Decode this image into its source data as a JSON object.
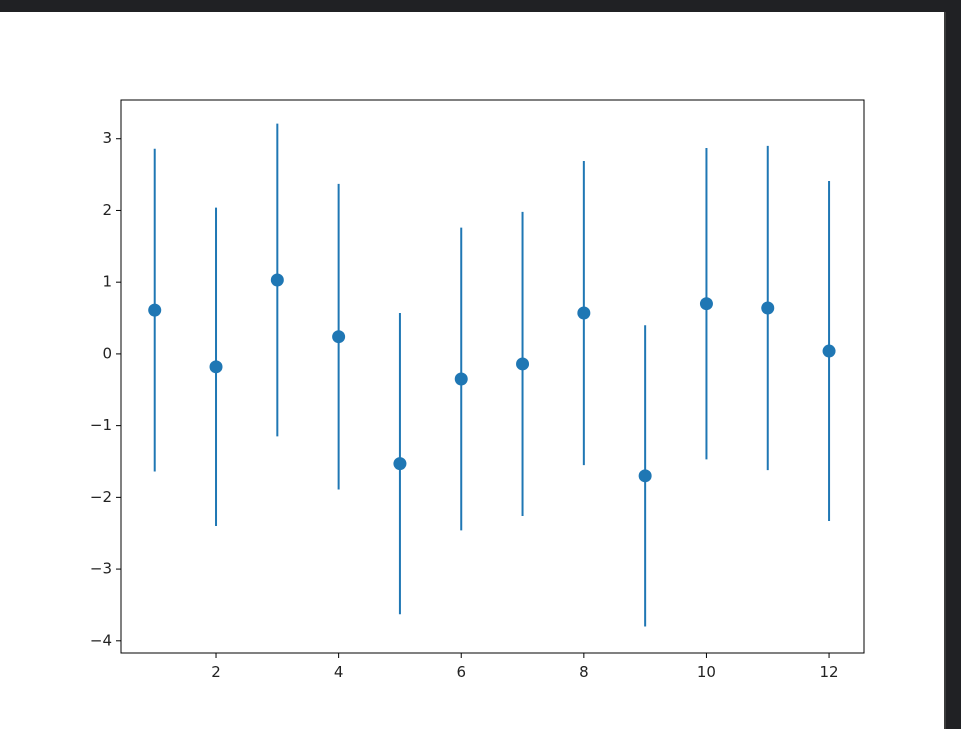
{
  "chart_data": {
    "type": "errorbar",
    "x": [
      1,
      2,
      3,
      4,
      5,
      6,
      7,
      8,
      9,
      10,
      11,
      12
    ],
    "series": [
      {
        "color": "#1f77b4",
        "values": [
          0.61,
          -0.18,
          1.03,
          0.24,
          -1.53,
          -0.35,
          -0.14,
          0.57,
          -1.7,
          0.7,
          0.64,
          0.04
        ],
        "errors": [
          2.25,
          2.22,
          2.18,
          2.13,
          2.1,
          2.11,
          2.12,
          2.12,
          2.1,
          2.17,
          2.26,
          2.37
        ]
      }
    ],
    "xlim": [
      0.45,
      12.57
    ],
    "ylim": [
      -4.17,
      3.54
    ],
    "xticks": [
      2,
      4,
      6,
      8,
      10,
      12
    ],
    "yticks": [
      {
        "value": -4,
        "label": "−4"
      },
      {
        "value": -3,
        "label": "−3"
      },
      {
        "value": -2,
        "label": "−2"
      },
      {
        "value": -1,
        "label": "−1"
      },
      0,
      1,
      2,
      3
    ]
  }
}
